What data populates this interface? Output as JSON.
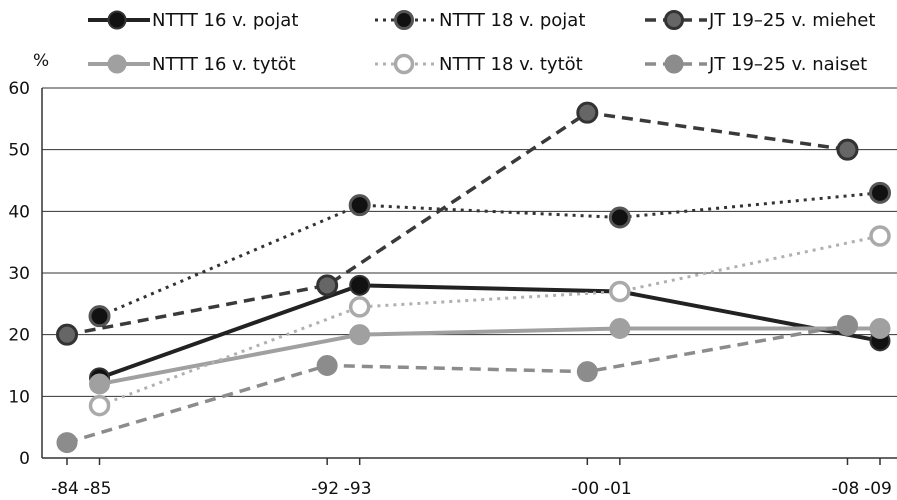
{
  "chart_data": {
    "type": "line",
    "ylabel": "%",
    "ylim": [
      0,
      60
    ],
    "yticks": [
      0,
      10,
      20,
      30,
      40,
      50,
      60
    ],
    "x_ticks": [
      {
        "label": "-84",
        "value": 1984
      },
      {
        "label": "-85",
        "value": 1985
      },
      {
        "label": "-92",
        "value": 1992
      },
      {
        "label": "-93",
        "value": 1993
      },
      {
        "label": "-00",
        "value": 2000
      },
      {
        "label": "-01",
        "value": 2001
      },
      {
        "label": "-08",
        "value": 2008
      },
      {
        "label": "-09",
        "value": 2009
      }
    ],
    "xlim": [
      1984,
      2009
    ],
    "grid": "horizontal",
    "legend": "top",
    "series": [
      {
        "name": "NTTT 16 v. pojat",
        "color": "#222222",
        "marker": "#111111",
        "points": [
          {
            "x": 1985,
            "y": 13
          },
          {
            "x": 1993,
            "y": 28
          },
          {
            "x": 2001,
            "y": 27
          },
          {
            "x": 2009,
            "y": 19
          }
        ]
      },
      {
        "name": "NTTT 18 v. pojat",
        "color": "#333333",
        "marker": "#111111",
        "points": [
          {
            "x": 1985,
            "y": 23
          },
          {
            "x": 1993,
            "y": 41
          },
          {
            "x": 2001,
            "y": 39
          },
          {
            "x": 2009,
            "y": 43
          }
        ]
      },
      {
        "name": "JT 19–25 v. miehet",
        "color": "#3a3a3a",
        "marker": "#666666",
        "points": [
          {
            "x": 1984,
            "y": 20
          },
          {
            "x": 1992,
            "y": 28
          },
          {
            "x": 2000,
            "y": 56
          },
          {
            "x": 2008,
            "y": 50
          }
        ]
      },
      {
        "name": "NTTT 16 v. tytöt",
        "color": "#a0a0a0",
        "marker": "#a0a0a0",
        "points": [
          {
            "x": 1985,
            "y": 12
          },
          {
            "x": 1993,
            "y": 20
          },
          {
            "x": 2001,
            "y": 21
          },
          {
            "x": 2009,
            "y": 21
          }
        ]
      },
      {
        "name": "NTTT 18 v. tytöt",
        "color": "#b0b0b0",
        "marker": "#ffffff",
        "points": [
          {
            "x": 1985,
            "y": 8.5
          },
          {
            "x": 1993,
            "y": 24.5
          },
          {
            "x": 2001,
            "y": 27
          },
          {
            "x": 2009,
            "y": 36
          }
        ]
      },
      {
        "name": "JT 19–25 v. naiset",
        "color": "#8c8c8c",
        "marker": "#8c8c8c",
        "points": [
          {
            "x": 1984,
            "y": 2.5
          },
          {
            "x": 1992,
            "y": 15
          },
          {
            "x": 2000,
            "y": 14
          },
          {
            "x": 2008,
            "y": 21.5
          }
        ]
      }
    ]
  }
}
